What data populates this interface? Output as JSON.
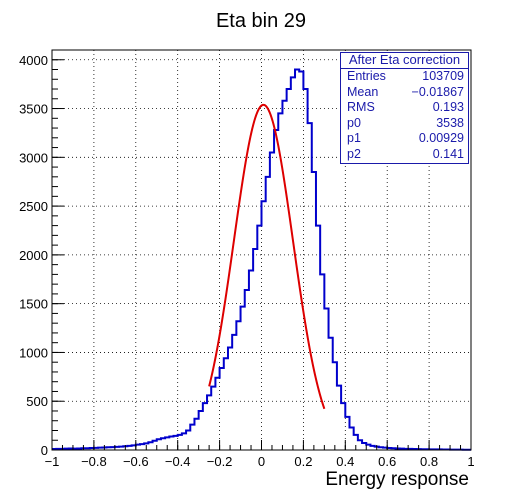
{
  "chart_data": {
    "type": "histogram",
    "title": "Eta bin 29",
    "xlabel": "Energy response",
    "ylabel": "",
    "xlim": [
      -1,
      1
    ],
    "ylim": [
      0,
      4100
    ],
    "grid": true,
    "x_ticks": [
      "−1",
      "−0.8",
      "−0.6",
      "−0.4",
      "−0.2",
      "0",
      "0.2",
      "0.4",
      "0.6",
      "0.8",
      "1"
    ],
    "y_ticks": [
      "0",
      "500",
      "1000",
      "1500",
      "2000",
      "2500",
      "3000",
      "3500",
      "4000"
    ],
    "histogram": {
      "name": "histogram",
      "color": "#0000cc",
      "bin_width": 0.02,
      "x_start": -1,
      "values": [
        10,
        12,
        12,
        14,
        15,
        14,
        16,
        18,
        18,
        20,
        22,
        24,
        26,
        28,
        30,
        32,
        35,
        38,
        42,
        48,
        55,
        60,
        68,
        80,
        95,
        110,
        120,
        130,
        138,
        145,
        155,
        170,
        200,
        260,
        320,
        400,
        480,
        560,
        650,
        740,
        840,
        940,
        1050,
        1180,
        1320,
        1470,
        1640,
        1840,
        2060,
        2300,
        2550,
        2800,
        3050,
        3280,
        3450,
        3580,
        3700,
        3820,
        3900,
        3880,
        3700,
        3350,
        2850,
        2300,
        1800,
        1450,
        1150,
        900,
        660,
        480,
        340,
        230,
        155,
        100,
        72,
        55,
        42,
        34,
        28,
        24,
        20,
        18,
        16,
        14,
        12,
        11,
        10,
        9,
        8,
        8,
        7,
        6,
        6,
        5,
        5,
        4,
        4,
        4,
        3,
        3
      ]
    },
    "fit": {
      "name": "fit",
      "color": "#dd0000",
      "function": "gaus",
      "p0": 3538,
      "p1": 0.00929,
      "p2": 0.141,
      "x_range": [
        -0.25,
        0.3
      ]
    },
    "stats_box": {
      "title": "After Eta correction",
      "rows": [
        {
          "label": "Entries",
          "value": "103709"
        },
        {
          "label": "Mean",
          "value": "−0.01867"
        },
        {
          "label": "RMS",
          "value": "0.193"
        },
        {
          "label": "p0",
          "value": "3538"
        },
        {
          "label": "p1",
          "value": "0.00929"
        },
        {
          "label": "p2",
          "value": "0.141"
        }
      ]
    }
  }
}
